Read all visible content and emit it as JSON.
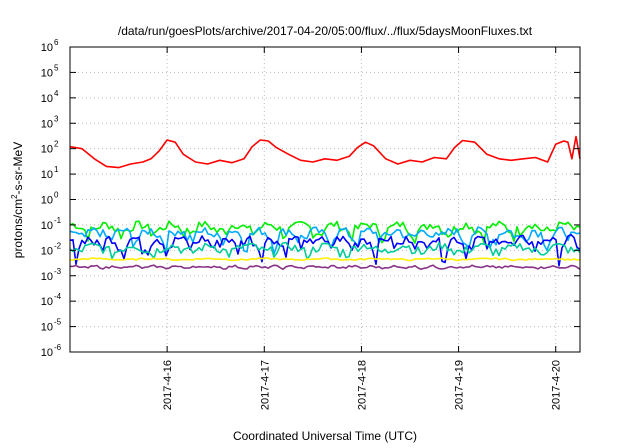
{
  "chart_data": {
    "type": "line",
    "title": "/data/run/goesPlots/archive/2017-04-20/05:00/flux/../flux/5daysMoonFluxes.txt",
    "xlabel": "Coordinated Universal Time (UTC)",
    "ylabel": {
      "prefix": "protons/cm",
      "sup": "2",
      "suffix": "-s-sr-MeV"
    },
    "yscale": "log",
    "ylim": [
      1e-06,
      1000000.0
    ],
    "yticks": [
      {
        "base": "10",
        "exp": "-6",
        "value": 1e-06
      },
      {
        "base": "10",
        "exp": "-5",
        "value": 1e-05
      },
      {
        "base": "10",
        "exp": "-4",
        "value": 0.0001
      },
      {
        "base": "10",
        "exp": "-3",
        "value": 0.001
      },
      {
        "base": "10",
        "exp": "-2",
        "value": 0.01
      },
      {
        "base": "10",
        "exp": "-1",
        "value": 0.1
      },
      {
        "base": "10",
        "exp": "0",
        "value": 1
      },
      {
        "base": "10",
        "exp": "1",
        "value": 10
      },
      {
        "base": "10",
        "exp": "2",
        "value": 100
      },
      {
        "base": "10",
        "exp": "3",
        "value": 1000
      },
      {
        "base": "10",
        "exp": "4",
        "value": 10000
      },
      {
        "base": "10",
        "exp": "5",
        "value": 100000
      },
      {
        "base": "10",
        "exp": "6",
        "value": 1000000
      }
    ],
    "xlim": [
      "2017-04-15T00:00",
      "2017-04-20T06:00"
    ],
    "xticks": [
      "2017-4-16",
      "2017-4-17",
      "2017-4-18",
      "2017-4-19",
      "2017-4-20"
    ],
    "grid": true,
    "legend": "none",
    "series": [
      {
        "color": "#ff0000",
        "x": [
          "2017-04-15T00:00",
          "2017-04-15T03:00",
          "2017-04-15T06:00",
          "2017-04-15T09:00",
          "2017-04-15T12:00",
          "2017-04-15T15:00",
          "2017-04-15T18:00",
          "2017-04-15T20:00",
          "2017-04-15T22:00",
          "2017-04-16T00:00",
          "2017-04-16T02:00",
          "2017-04-16T04:00",
          "2017-04-16T07:00",
          "2017-04-16T10:00",
          "2017-04-16T13:00",
          "2017-04-16T16:00",
          "2017-04-16T19:00",
          "2017-04-16T21:00",
          "2017-04-16T23:00",
          "2017-04-17T01:00",
          "2017-04-17T03:00",
          "2017-04-17T06:00",
          "2017-04-17T09:00",
          "2017-04-17T12:00",
          "2017-04-17T15:00",
          "2017-04-17T18:00",
          "2017-04-17T21:00",
          "2017-04-17T23:00",
          "2017-04-18T01:00",
          "2017-04-18T03:00",
          "2017-04-18T06:00",
          "2017-04-18T09:00",
          "2017-04-18T12:00",
          "2017-04-18T15:00",
          "2017-04-18T18:00",
          "2017-04-18T21:00",
          "2017-04-18T23:00",
          "2017-04-19T01:00",
          "2017-04-19T04:00",
          "2017-04-19T07:00",
          "2017-04-19T10:00",
          "2017-04-19T13:00",
          "2017-04-19T16:00",
          "2017-04-19T19:00",
          "2017-04-19T22:00",
          "2017-04-20T00:00",
          "2017-04-20T02:00",
          "2017-04-20T03:00",
          "2017-04-20T04:00",
          "2017-04-20T05:00",
          "2017-04-20T06:00"
        ],
        "y": [
          120,
          100,
          40,
          20,
          18,
          25,
          30,
          40,
          80,
          220,
          180,
          60,
          30,
          25,
          35,
          28,
          40,
          120,
          220,
          200,
          110,
          60,
          35,
          30,
          40,
          35,
          50,
          110,
          180,
          130,
          40,
          25,
          35,
          30,
          45,
          40,
          110,
          210,
          180,
          60,
          40,
          35,
          40,
          45,
          30,
          150,
          200,
          180,
          40,
          300,
          40
        ]
      },
      {
        "color": "#00ee00",
        "base": 0.08,
        "amp": 0.045,
        "freq": 2.6
      },
      {
        "color": "#00aaff",
        "base": 0.045,
        "amp": 0.028,
        "freq": 3.1
      },
      {
        "color": "#0000ff",
        "base": 0.022,
        "amp": 0.014,
        "freq": 3.7
      },
      {
        "color": "#00cc99",
        "base": 0.012,
        "amp": 0.006,
        "freq": 2.2
      },
      {
        "color": "#ffee00",
        "base": 0.0045,
        "amp": 0.0004,
        "freq": 1.5
      },
      {
        "color": "#883388",
        "base": 0.0022,
        "amp": 0.0003,
        "freq": 4.3
      }
    ]
  }
}
